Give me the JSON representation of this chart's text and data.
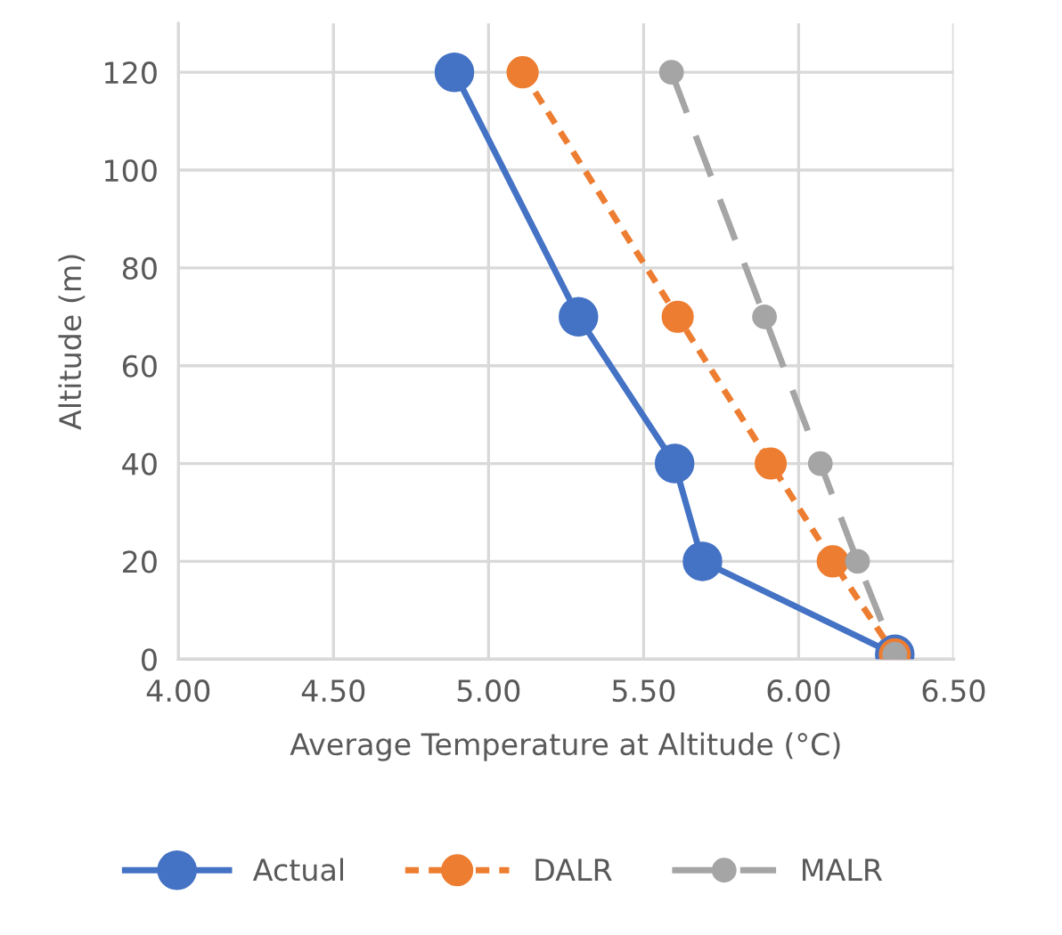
{
  "chart_data": {
    "type": "line",
    "xlabel": "Average Temperature at Altitude (°C)",
    "ylabel": "Altitude (m)",
    "xlim": [
      4.0,
      6.5
    ],
    "xticks": [
      {
        "value": 4.0,
        "label": "4.00"
      },
      {
        "value": 4.5,
        "label": "4.50"
      },
      {
        "value": 5.0,
        "label": "5.00"
      },
      {
        "value": 5.5,
        "label": "5.50"
      },
      {
        "value": 6.0,
        "label": "6.00"
      },
      {
        "value": 6.5,
        "label": "6.50"
      }
    ],
    "ylim": [
      0,
      130
    ],
    "yticks": [
      0,
      20,
      40,
      60,
      80,
      100,
      120
    ],
    "grid": true,
    "legend": "bottom",
    "marker": "circle",
    "series": [
      {
        "name": "Actual",
        "color": "#4472c4",
        "line_style": "solid",
        "x": [
          4.89,
          5.29,
          5.6,
          5.69,
          6.31
        ],
        "values": [
          120,
          70,
          40,
          20,
          1
        ]
      },
      {
        "name": "DALR",
        "color": "#ed7d31",
        "line_style": "dotted",
        "x": [
          5.11,
          5.61,
          5.91,
          6.11,
          6.31
        ],
        "values": [
          120,
          70,
          40,
          20,
          1
        ]
      },
      {
        "name": "MALR",
        "color": "#a5a5a5",
        "line_style": "dashed",
        "x": [
          5.59,
          5.89,
          6.07,
          6.19,
          6.31
        ],
        "values": [
          120,
          70,
          40,
          20,
          1
        ]
      }
    ]
  }
}
